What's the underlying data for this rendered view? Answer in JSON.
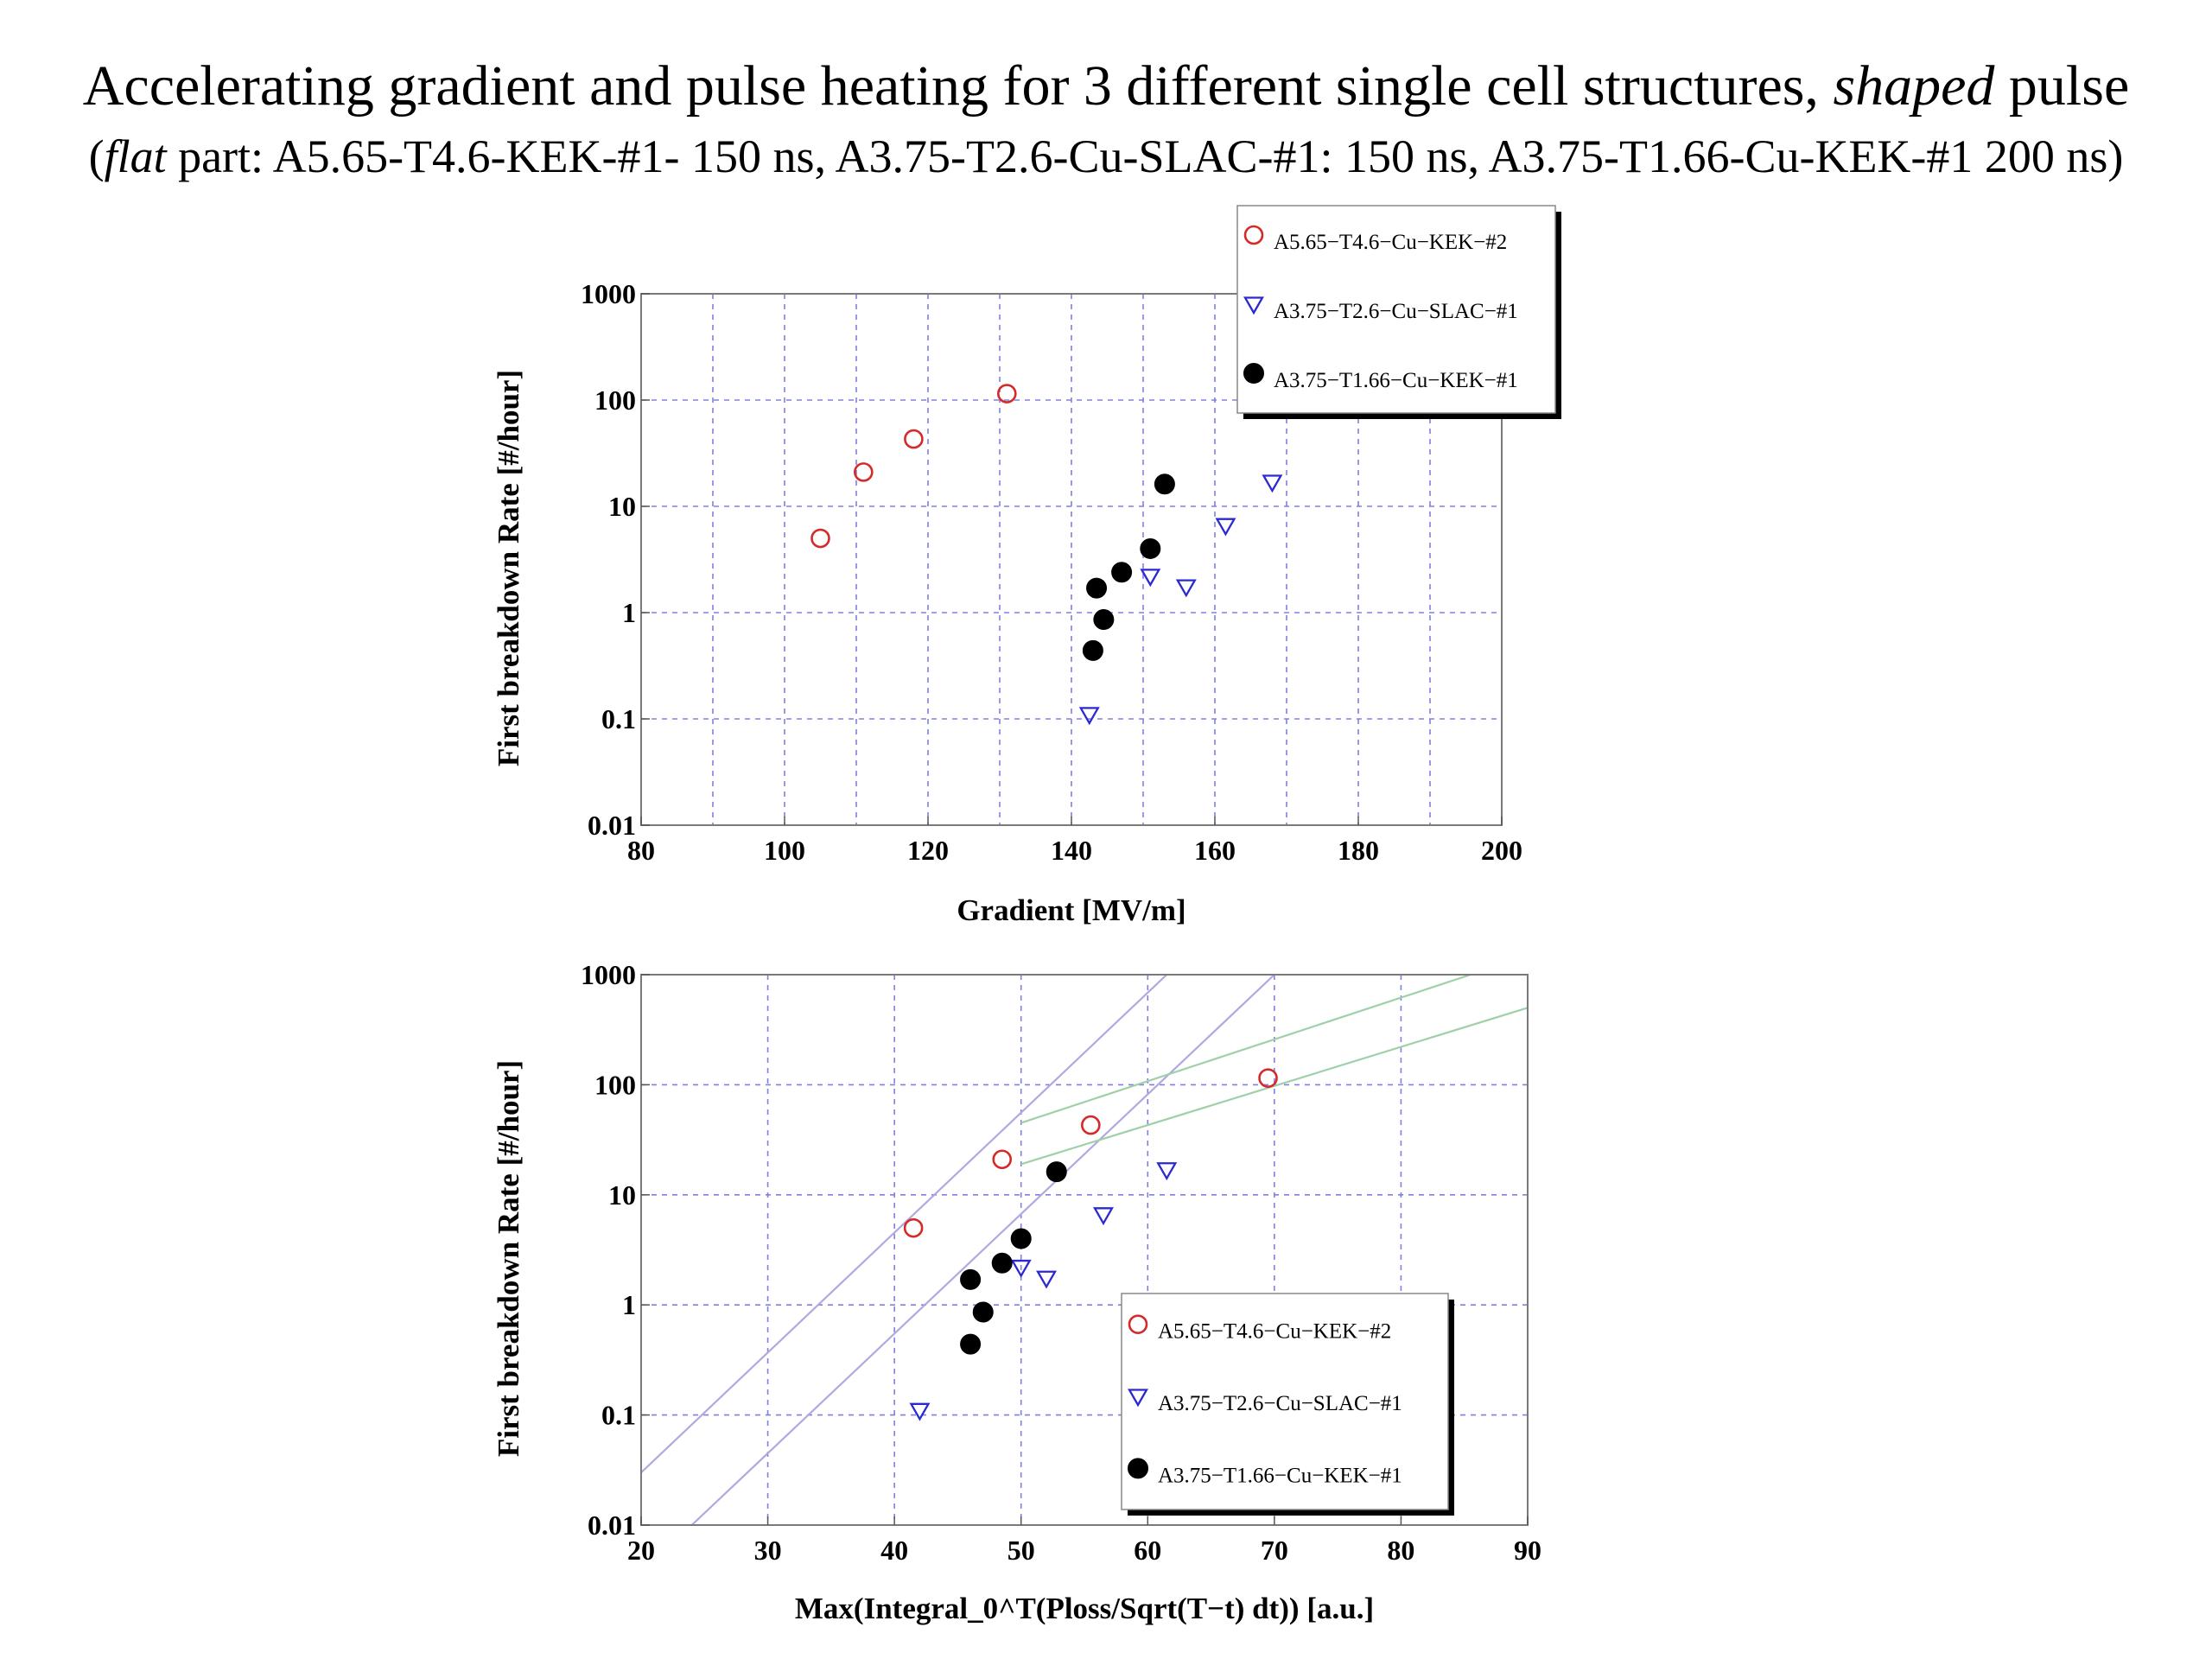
{
  "header": {
    "title_main": "Accelerating gradient and pulse heating for 3 different single cell structures,",
    "title_italic": "shaped",
    "title_end": "pulse",
    "subtitle_open": "(",
    "subtitle_italic": "flat",
    "subtitle_rest": "part: A5.65-T4.6-KEK-#1- 150 ns, A3.75-T2.6-Cu-SLAC-#1: 150 ns, A3.75-T1.66-Cu-KEK-#1 200 ns)"
  },
  "colors": {
    "series_red": "#d42a2a",
    "series_blue": "#2a2ad0",
    "series_black": "#000000",
    "grid": "#8080e0",
    "fit_purple": "#b0a8e0",
    "fit_green": "#9fd0a8"
  },
  "chart_data": [
    {
      "type": "scatter",
      "xlabel": "Gradient [MV/m]",
      "ylabel": "First breakdown Rate [#/hour]",
      "xlim": [
        80,
        200
      ],
      "ylim": [
        0.01,
        1000
      ],
      "yscale": "log",
      "grid": true,
      "legend_position": "top-right",
      "x_ticks": [
        "80",
        "100",
        "120",
        "140",
        "160",
        "180",
        "200"
      ],
      "y_ticks": [
        "0.01",
        "0.1",
        "1",
        "10",
        "100",
        "1000"
      ],
      "series": [
        {
          "name": "A5.65−T4.6−Cu−KEK−#2",
          "marker": "open-circle",
          "color": "#d42a2a",
          "points": [
            [
              105,
              5
            ],
            [
              111,
              21
            ],
            [
              118,
              43
            ],
            [
              131,
              115
            ]
          ]
        },
        {
          "name": "A3.75−T2.6−Cu−SLAC−#1",
          "marker": "open-triangle",
          "color": "#2a2ad0",
          "points": [
            [
              142.5,
              0.11
            ],
            [
              151,
              2.2
            ],
            [
              156,
              1.75
            ],
            [
              161.5,
              6.6
            ],
            [
              168,
              16.9
            ]
          ]
        },
        {
          "name": "A3.75−T1.66−Cu−KEK−#1",
          "marker": "filled-circle",
          "color": "#000000",
          "points": [
            [
              143,
              0.44
            ],
            [
              144.5,
              0.86
            ],
            [
              143.5,
              1.7
            ],
            [
              147,
              2.4
            ],
            [
              151,
              4
            ],
            [
              153,
              16.2
            ]
          ]
        }
      ]
    },
    {
      "type": "scatter",
      "xlabel": "Max(Integral_0^T(Ploss/Sqrt(T−t) dt)) [a.u.]",
      "ylabel": "First breakdown Rate [#/hour]",
      "xlim": [
        20,
        90
      ],
      "ylim": [
        0.01,
        1000
      ],
      "yscale": "log",
      "grid": true,
      "legend_position": "bottom-right",
      "x_ticks": [
        "20",
        "30",
        "40",
        "50",
        "60",
        "70",
        "80",
        "90"
      ],
      "y_ticks": [
        "0.01",
        "0.1",
        "1",
        "10",
        "100",
        "1000"
      ],
      "series": [
        {
          "name": "A5.65−T4.6−Cu−KEK−#2",
          "marker": "open-circle",
          "color": "#d42a2a",
          "points": [
            [
              41.5,
              5
            ],
            [
              48.5,
              21
            ],
            [
              55.5,
              43
            ],
            [
              69.5,
              115
            ]
          ]
        },
        {
          "name": "A3.75−T2.6−Cu−SLAC−#1",
          "marker": "open-triangle",
          "color": "#2a2ad0",
          "points": [
            [
              42,
              0.11
            ],
            [
              50,
              2.2
            ],
            [
              52,
              1.75
            ],
            [
              56.5,
              6.6
            ],
            [
              61.5,
              16.9
            ]
          ]
        },
        {
          "name": "A3.75−T1.66−Cu−KEK−#1",
          "marker": "filled-circle",
          "color": "#000000",
          "points": [
            [
              46,
              0.44
            ],
            [
              47,
              0.86
            ],
            [
              46,
              1.7
            ],
            [
              48.5,
              2.4
            ],
            [
              50,
              4
            ],
            [
              52.8,
              16.2
            ]
          ]
        }
      ],
      "fit_lines": [
        {
          "color": "#b0a8e0",
          "points": [
            [
              20,
              0.03
            ],
            [
              61.5,
              1000
            ]
          ]
        },
        {
          "color": "#b0a8e0",
          "points": [
            [
              24,
              0.01
            ],
            [
              70,
              1000
            ]
          ]
        },
        {
          "color": "#9fd0a8",
          "points": [
            [
              50,
              45
            ],
            [
              85.5,
              1000
            ]
          ]
        },
        {
          "color": "#9fd0a8",
          "points": [
            [
              50,
              19
            ],
            [
              90,
              500
            ]
          ]
        }
      ]
    }
  ]
}
